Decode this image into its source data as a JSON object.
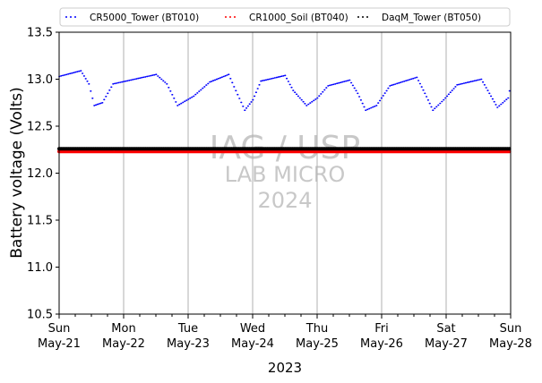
{
  "chart_data": {
    "type": "scatter",
    "xlabel": "2023",
    "ylabel": "Battery voltage (Volts)",
    "xlim": [
      "2023-05-21",
      "2023-05-28"
    ],
    "ylim": [
      10.5,
      13.5
    ],
    "yticks": [
      10.5,
      11.0,
      11.5,
      12.0,
      12.5,
      13.0,
      13.5
    ],
    "ytick_labels": [
      "10.5",
      "11.0",
      "11.5",
      "12.0",
      "12.5",
      "13.0",
      "13.5"
    ],
    "xticks": [
      {
        "date": "2023-05-21",
        "day": "Sun",
        "label": "May-21"
      },
      {
        "date": "2023-05-22",
        "day": "Mon",
        "label": "May-22"
      },
      {
        "date": "2023-05-23",
        "day": "Tue",
        "label": "May-23"
      },
      {
        "date": "2023-05-24",
        "day": "Wed",
        "label": "May-24"
      },
      {
        "date": "2023-05-25",
        "day": "Thu",
        "label": "May-25"
      },
      {
        "date": "2023-05-26",
        "day": "Fri",
        "label": "May-26"
      },
      {
        "date": "2023-05-27",
        "day": "Sat",
        "label": "May-27"
      },
      {
        "date": "2023-05-28",
        "day": "Sun",
        "label": "May-28"
      }
    ],
    "grid": "x-major",
    "legend_position": "top",
    "watermark": [
      "IAG / USP",
      "LAB MICRO",
      "2024"
    ],
    "series": [
      {
        "name": "CR5000_Tower (BT010)",
        "color": "#0000ff",
        "points": [
          [
            "2023-05-21T00:00",
            13.03
          ],
          [
            "2023-05-21T08:00",
            13.09
          ],
          [
            "2023-05-21T11:00",
            12.95
          ],
          [
            "2023-05-21T13:00",
            12.72
          ],
          [
            "2023-05-21T16:00",
            12.75
          ],
          [
            "2023-05-21T20:00",
            12.95
          ],
          [
            "2023-05-22T12:00",
            13.05
          ],
          [
            "2023-05-22T16:00",
            12.95
          ],
          [
            "2023-05-22T20:00",
            12.72
          ],
          [
            "2023-05-23T02:00",
            12.82
          ],
          [
            "2023-05-23T08:00",
            12.97
          ],
          [
            "2023-05-23T15:00",
            13.05
          ],
          [
            "2023-05-23T17:00",
            12.92
          ],
          [
            "2023-05-23T21:00",
            12.67
          ],
          [
            "2023-05-24T00:00",
            12.78
          ],
          [
            "2023-05-24T03:00",
            12.98
          ],
          [
            "2023-05-24T12:00",
            13.04
          ],
          [
            "2023-05-24T15:00",
            12.88
          ],
          [
            "2023-05-24T20:00",
            12.72
          ],
          [
            "2023-05-25T00:00",
            12.8
          ],
          [
            "2023-05-25T04:00",
            12.93
          ],
          [
            "2023-05-25T12:00",
            12.99
          ],
          [
            "2023-05-25T15:00",
            12.85
          ],
          [
            "2023-05-25T18:00",
            12.67
          ],
          [
            "2023-05-25T22:00",
            12.72
          ],
          [
            "2023-05-26T03:00",
            12.93
          ],
          [
            "2023-05-26T13:00",
            13.02
          ],
          [
            "2023-05-26T16:00",
            12.85
          ],
          [
            "2023-05-26T19:00",
            12.67
          ],
          [
            "2023-05-26T23:00",
            12.78
          ],
          [
            "2023-05-27T04:00",
            12.94
          ],
          [
            "2023-05-27T13:00",
            13.0
          ],
          [
            "2023-05-27T16:00",
            12.85
          ],
          [
            "2023-05-27T19:00",
            12.7
          ],
          [
            "2023-05-27T23:00",
            12.8
          ],
          [
            "2023-05-28T00:00",
            12.95
          ]
        ]
      },
      {
        "name": "CR1000_Soil (BT040)",
        "color": "#ff0000",
        "points": [
          [
            "2023-05-21T00:00",
            12.23
          ],
          [
            "2023-05-28T00:00",
            12.23
          ]
        ]
      },
      {
        "name": "DaqM_Tower (BT050)",
        "color": "#000000",
        "points": [
          [
            "2023-05-21T00:00",
            12.26
          ],
          [
            "2023-05-28T00:00",
            12.26
          ]
        ]
      }
    ]
  }
}
